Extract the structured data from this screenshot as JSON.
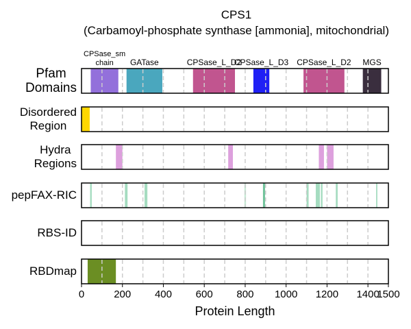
{
  "chart_data": {
    "type": "domain-track",
    "title": "CPS1",
    "subtitle": "(Carbamoyl-phosphate synthase [ammonia], mitochondrial)",
    "xlabel": "Protein Length",
    "xlim": [
      0,
      1500
    ],
    "xticks": [
      0,
      200,
      400,
      600,
      800,
      1000,
      1200,
      1400,
      1500
    ],
    "gridlines": [
      100,
      200,
      300,
      400,
      500,
      600,
      700,
      800,
      900,
      1000,
      1100,
      1200,
      1300,
      1400
    ],
    "grid": true,
    "tracks": [
      {
        "name": "Pfam\nDomains",
        "segments": [
          {
            "label": "CPSase_sm\nchain",
            "start": 45,
            "end": 180,
            "color": "#9370DB"
          },
          {
            "label": "GATase",
            "start": 220,
            "end": 395,
            "color": "#4AA7BE"
          },
          {
            "label": "CPSase_L_D2",
            "start": 545,
            "end": 750,
            "color": "#C1558F"
          },
          {
            "label": "CPSase_L_D3",
            "start": 840,
            "end": 918,
            "color": "#2020F5"
          },
          {
            "label": "CPSase_L_D2",
            "start": 1085,
            "end": 1285,
            "color": "#C1558F"
          },
          {
            "label": "MGS",
            "start": 1375,
            "end": 1465,
            "color": "#3A2E3E"
          }
        ]
      },
      {
        "name": "Disordered\nRegion",
        "segments": [
          {
            "start": 0,
            "end": 40,
            "color": "#FFD700"
          }
        ]
      },
      {
        "name": "Hydra\nRegions",
        "segments": [
          {
            "start": 168,
            "end": 200,
            "color": "#DDA0DD"
          },
          {
            "start": 717,
            "end": 740,
            "color": "#DDA0DD"
          },
          {
            "start": 1160,
            "end": 1185,
            "color": "#DDA0DD"
          },
          {
            "start": 1200,
            "end": 1232,
            "color": "#DDA0DD"
          }
        ]
      },
      {
        "name": "pepFAX-RIC",
        "segments": [
          {
            "start": 42,
            "end": 50,
            "color": "#A5DCC0"
          },
          {
            "start": 212,
            "end": 225,
            "color": "#A5DCC0"
          },
          {
            "start": 308,
            "end": 322,
            "color": "#A5DCC0"
          },
          {
            "start": 796,
            "end": 804,
            "color": "#C6EAD5"
          },
          {
            "start": 887,
            "end": 897,
            "color": "#6FC29A"
          },
          {
            "start": 1100,
            "end": 1110,
            "color": "#A5DCC0"
          },
          {
            "start": 1145,
            "end": 1165,
            "color": "#A5DCC0"
          },
          {
            "start": 1170,
            "end": 1178,
            "color": "#A5DCC0"
          },
          {
            "start": 1243,
            "end": 1252,
            "color": "#A5DCC0"
          },
          {
            "start": 1440,
            "end": 1446,
            "color": "#A5DCC0"
          }
        ]
      },
      {
        "name": "RBS-ID",
        "segments": []
      },
      {
        "name": "RBDmap",
        "segments": [
          {
            "start": 30,
            "end": 168,
            "color": "#6B8E23"
          }
        ]
      }
    ]
  }
}
